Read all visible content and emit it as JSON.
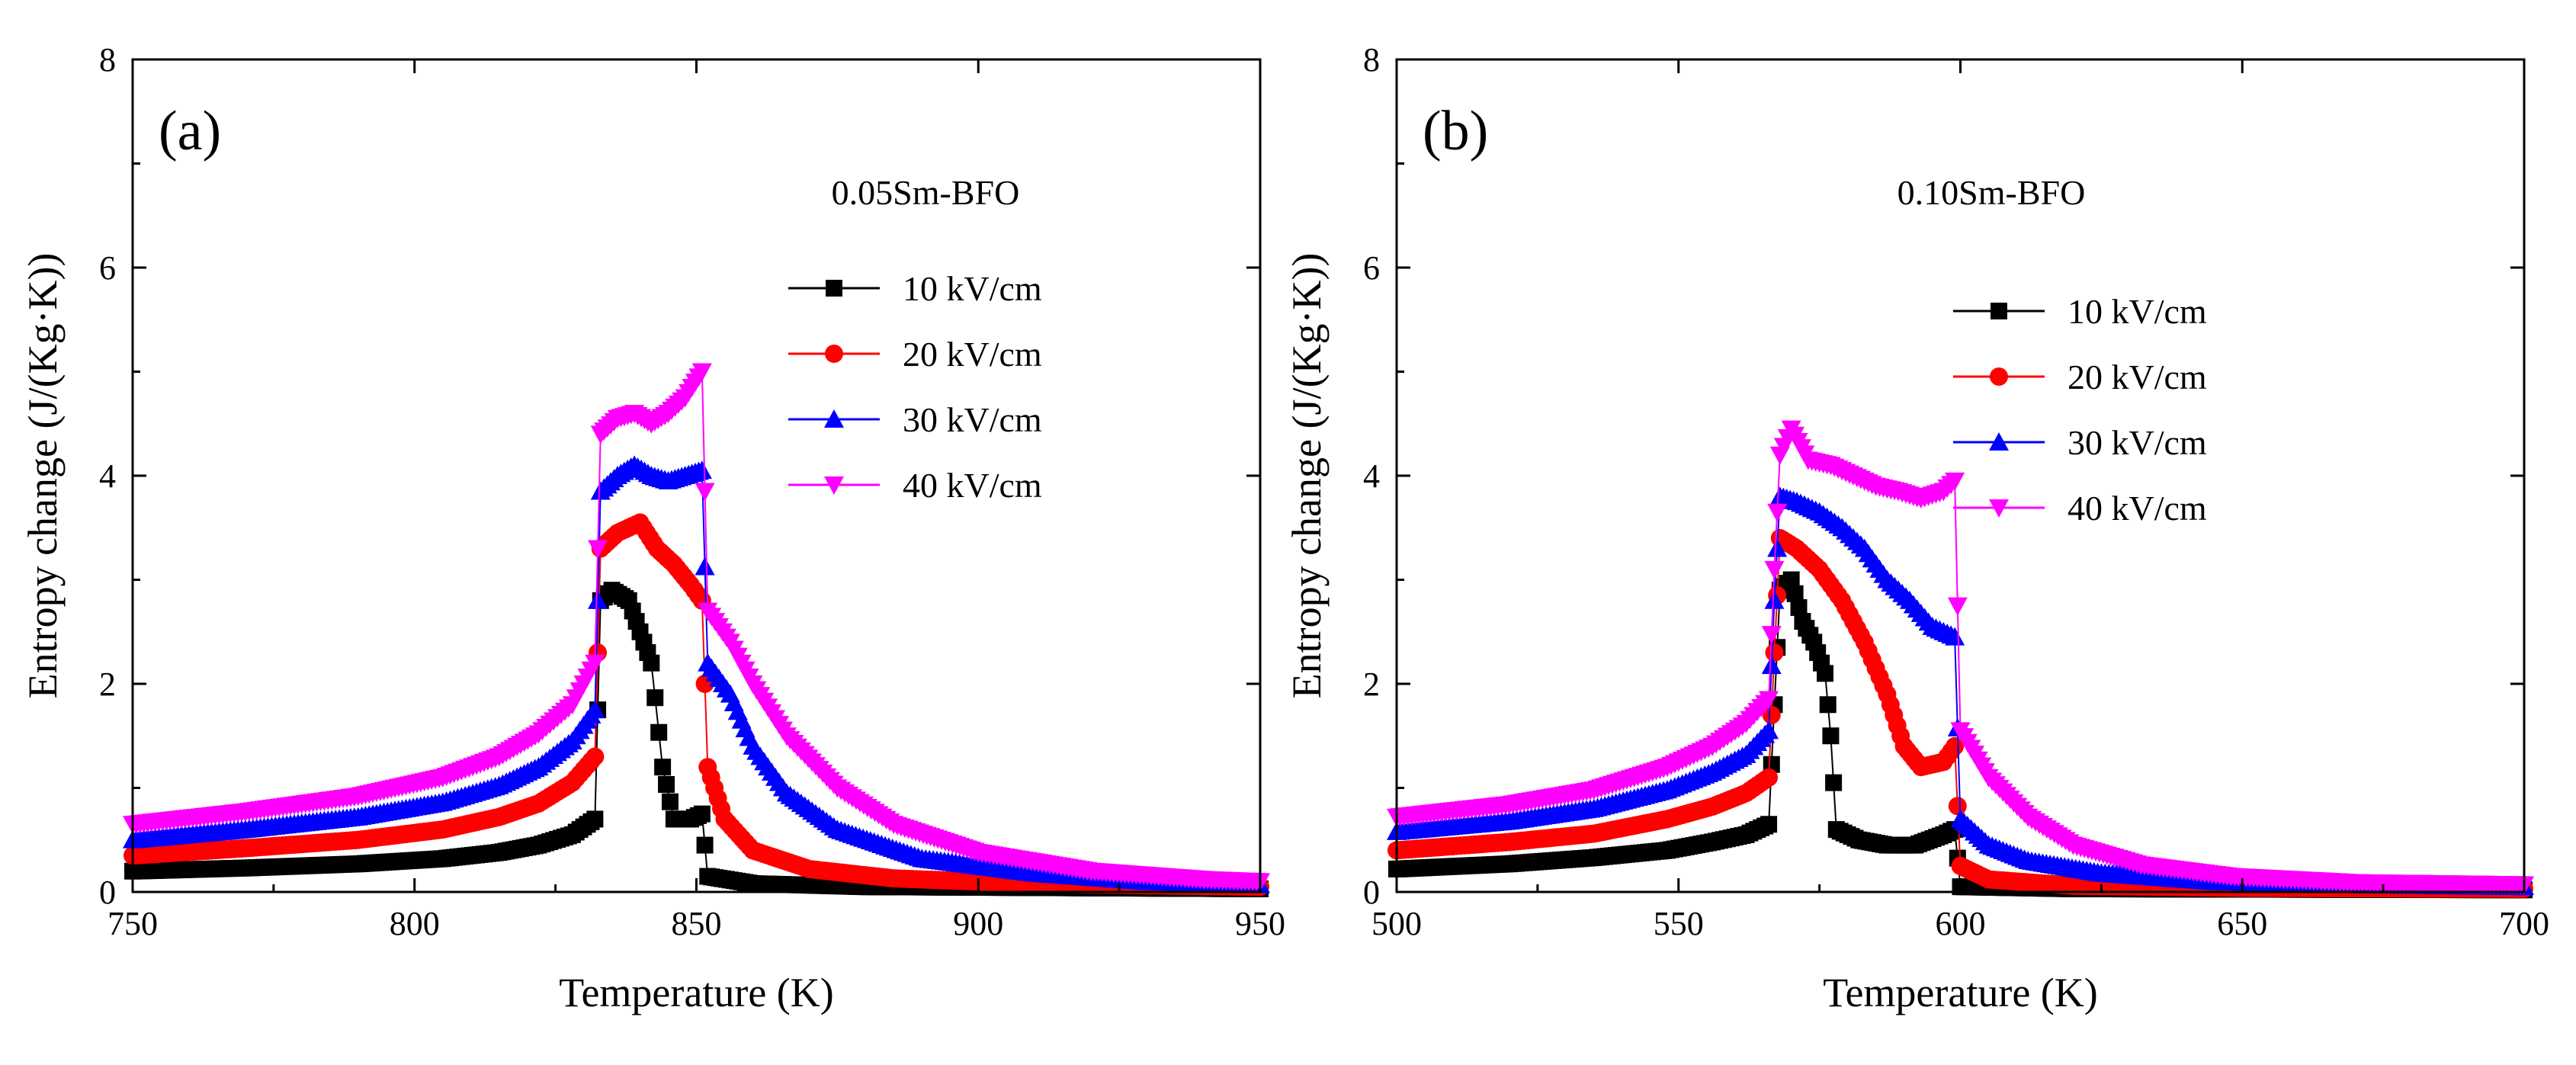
{
  "figure": {
    "panels": [
      "panel_a",
      "panel_b"
    ]
  },
  "series_style": {
    "10 kV/cm": {
      "color": "#000000",
      "marker": "square"
    },
    "20 kV/cm": {
      "color": "#ff0000",
      "marker": "circle"
    },
    "30 kV/cm": {
      "color": "#0000ff",
      "marker": "triangle-up"
    },
    "40 kV/cm": {
      "color": "#ff00ff",
      "marker": "triangle-down"
    }
  },
  "chart_data": [
    {
      "id": "panel_a",
      "type": "scatter",
      "tag": "(a)",
      "title": "0.05Sm-BFO",
      "xlabel": "Temperature (K)",
      "ylabel": "Entropy change (J/(Kg·K))",
      "xlim": [
        750,
        950
      ],
      "ylim": [
        0,
        8
      ],
      "xticks": [
        750,
        800,
        850,
        900,
        950
      ],
      "yticks": [
        0,
        2,
        4,
        6,
        8
      ],
      "legend_position": "top-right",
      "series": [
        {
          "name": "10 kV/cm",
          "points": [
            [
              750,
              0.2
            ],
            [
              770,
              0.23
            ],
            [
              790,
              0.27
            ],
            [
              805,
              0.32
            ],
            [
              815,
              0.38
            ],
            [
              822,
              0.45
            ],
            [
              828,
              0.55
            ],
            [
              832,
              0.7
            ],
            [
              833,
              2.8
            ],
            [
              835,
              2.9
            ],
            [
              838,
              2.8
            ],
            [
              840,
              2.5
            ],
            [
              842,
              2.2
            ],
            [
              844,
              1.2
            ],
            [
              846,
              0.7
            ],
            [
              849,
              0.7
            ],
            [
              851,
              0.75
            ],
            [
              852,
              0.15
            ],
            [
              860,
              0.08
            ],
            [
              880,
              0.05
            ],
            [
              950,
              0.03
            ]
          ]
        },
        {
          "name": "20 kV/cm",
          "points": [
            [
              750,
              0.35
            ],
            [
              770,
              0.42
            ],
            [
              790,
              0.5
            ],
            [
              805,
              0.6
            ],
            [
              815,
              0.72
            ],
            [
              822,
              0.85
            ],
            [
              828,
              1.05
            ],
            [
              832,
              1.3
            ],
            [
              833,
              3.3
            ],
            [
              836,
              3.45
            ],
            [
              840,
              3.55
            ],
            [
              843,
              3.3
            ],
            [
              846,
              3.15
            ],
            [
              849,
              2.95
            ],
            [
              851,
              2.8
            ],
            [
              852,
              1.2
            ],
            [
              855,
              0.7
            ],
            [
              860,
              0.4
            ],
            [
              870,
              0.22
            ],
            [
              885,
              0.13
            ],
            [
              910,
              0.08
            ],
            [
              950,
              0.05
            ]
          ]
        },
        {
          "name": "30 kV/cm",
          "points": [
            [
              750,
              0.5
            ],
            [
              770,
              0.6
            ],
            [
              790,
              0.72
            ],
            [
              805,
              0.86
            ],
            [
              815,
              1.02
            ],
            [
              822,
              1.2
            ],
            [
              828,
              1.45
            ],
            [
              832,
              1.75
            ],
            [
              833,
              3.85
            ],
            [
              836,
              4.0
            ],
            [
              839,
              4.1
            ],
            [
              842,
              4.0
            ],
            [
              845,
              3.95
            ],
            [
              848,
              4.0
            ],
            [
              851,
              4.05
            ],
            [
              852,
              2.2
            ],
            [
              856,
              1.9
            ],
            [
              860,
              1.4
            ],
            [
              866,
              0.95
            ],
            [
              875,
              0.6
            ],
            [
              890,
              0.32
            ],
            [
              910,
              0.18
            ],
            [
              930,
              0.1
            ],
            [
              950,
              0.07
            ]
          ]
        },
        {
          "name": "40 kV/cm",
          "points": [
            [
              750,
              0.65
            ],
            [
              770,
              0.77
            ],
            [
              790,
              0.92
            ],
            [
              805,
              1.1
            ],
            [
              815,
              1.3
            ],
            [
              822,
              1.52
            ],
            [
              828,
              1.8
            ],
            [
              832,
              2.2
            ],
            [
              833,
              4.4
            ],
            [
              836,
              4.55
            ],
            [
              839,
              4.6
            ],
            [
              842,
              4.5
            ],
            [
              845,
              4.6
            ],
            [
              848,
              4.75
            ],
            [
              851,
              5.0
            ],
            [
              852,
              2.7
            ],
            [
              856,
              2.4
            ],
            [
              860,
              2.0
            ],
            [
              866,
              1.5
            ],
            [
              875,
              1.0
            ],
            [
              885,
              0.65
            ],
            [
              900,
              0.38
            ],
            [
              920,
              0.2
            ],
            [
              940,
              0.12
            ],
            [
              950,
              0.1
            ]
          ]
        }
      ]
    },
    {
      "id": "panel_b",
      "type": "scatter",
      "tag": "(b)",
      "title": "0.10Sm-BFO",
      "xlabel": "Temperature (K)",
      "ylabel": "Entropy change (J/(Kg·K))",
      "xlim": [
        500,
        700
      ],
      "ylim": [
        0,
        8
      ],
      "xticks": [
        500,
        550,
        600,
        650,
        700
      ],
      "yticks": [
        0,
        2,
        4,
        6,
        8
      ],
      "legend_position": "top-right",
      "series": [
        {
          "name": "10 kV/cm",
          "points": [
            [
              500,
              0.22
            ],
            [
              520,
              0.27
            ],
            [
              535,
              0.33
            ],
            [
              548,
              0.4
            ],
            [
              556,
              0.48
            ],
            [
              562,
              0.55
            ],
            [
              566,
              0.65
            ],
            [
              567,
              1.8
            ],
            [
              568,
              2.9
            ],
            [
              570,
              3.0
            ],
            [
              572,
              2.6
            ],
            [
              574,
              2.4
            ],
            [
              576,
              2.1
            ],
            [
              577,
              1.5
            ],
            [
              578,
              0.6
            ],
            [
              582,
              0.5
            ],
            [
              587,
              0.45
            ],
            [
              592,
              0.45
            ],
            [
              597,
              0.55
            ],
            [
              599,
              0.6
            ],
            [
              600,
              0.05
            ],
            [
              620,
              0.03
            ],
            [
              700,
              0.02
            ]
          ]
        },
        {
          "name": "20 kV/cm",
          "points": [
            [
              500,
              0.4
            ],
            [
              520,
              0.48
            ],
            [
              535,
              0.56
            ],
            [
              548,
              0.7
            ],
            [
              556,
              0.82
            ],
            [
              562,
              0.95
            ],
            [
              566,
              1.1
            ],
            [
              567,
              2.3
            ],
            [
              568,
              3.4
            ],
            [
              571,
              3.3
            ],
            [
              575,
              3.1
            ],
            [
              579,
              2.8
            ],
            [
              583,
              2.4
            ],
            [
              587,
              1.9
            ],
            [
              590,
              1.4
            ],
            [
              593,
              1.2
            ],
            [
              597,
              1.25
            ],
            [
              599,
              1.4
            ],
            [
              600,
              0.25
            ],
            [
              605,
              0.12
            ],
            [
              620,
              0.06
            ],
            [
              650,
              0.04
            ],
            [
              700,
              0.03
            ]
          ]
        },
        {
          "name": "30 kV/cm",
          "points": [
            [
              500,
              0.58
            ],
            [
              520,
              0.68
            ],
            [
              535,
              0.8
            ],
            [
              548,
              0.98
            ],
            [
              556,
              1.15
            ],
            [
              562,
              1.32
            ],
            [
              566,
              1.55
            ],
            [
              567,
              2.8
            ],
            [
              568,
              3.8
            ],
            [
              571,
              3.75
            ],
            [
              575,
              3.65
            ],
            [
              579,
              3.5
            ],
            [
              583,
              3.3
            ],
            [
              587,
              3.0
            ],
            [
              591,
              2.8
            ],
            [
              595,
              2.55
            ],
            [
              599,
              2.45
            ],
            [
              600,
              0.7
            ],
            [
              605,
              0.45
            ],
            [
              612,
              0.3
            ],
            [
              625,
              0.18
            ],
            [
              645,
              0.1
            ],
            [
              670,
              0.07
            ],
            [
              700,
              0.05
            ]
          ]
        },
        {
          "name": "40 kV/cm",
          "points": [
            [
              500,
              0.72
            ],
            [
              520,
              0.84
            ],
            [
              535,
              0.98
            ],
            [
              548,
              1.2
            ],
            [
              556,
              1.4
            ],
            [
              562,
              1.62
            ],
            [
              566,
              1.85
            ],
            [
              567,
              3.1
            ],
            [
              568,
              4.2
            ],
            [
              570,
              4.45
            ],
            [
              573,
              4.15
            ],
            [
              577,
              4.1
            ],
            [
              581,
              4.0
            ],
            [
              585,
              3.9
            ],
            [
              589,
              3.85
            ],
            [
              593,
              3.78
            ],
            [
              597,
              3.85
            ],
            [
              599,
              3.95
            ],
            [
              600,
              1.55
            ],
            [
              605,
              1.1
            ],
            [
              612,
              0.72
            ],
            [
              620,
              0.45
            ],
            [
              632,
              0.26
            ],
            [
              648,
              0.15
            ],
            [
              670,
              0.09
            ],
            [
              700,
              0.07
            ]
          ]
        }
      ]
    }
  ]
}
